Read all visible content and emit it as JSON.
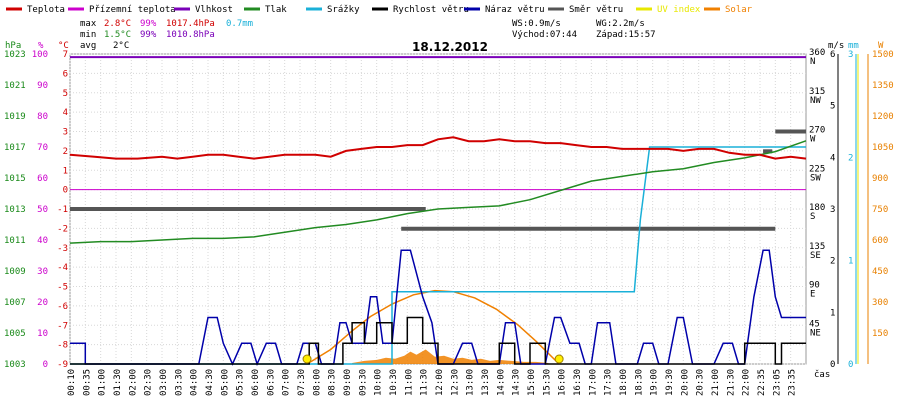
{
  "chart_data": {
    "type": "line",
    "title": "18.12.2012",
    "colors": {
      "temp": "#d00000",
      "feels": "#cc00cc",
      "humidity": "#7a00b8",
      "pressure": "#228b22",
      "rain": "#1ab0d8",
      "wind": "#000000",
      "gust": "#0000aa",
      "direction": "#555555",
      "uv": "#e8e800",
      "solar": "#f08000",
      "hpa_axis": "#1a8a1a",
      "pct_axis": "#cc00cc",
      "c_axis": "#d00000",
      "ms_axis": "#000000",
      "mm_axis": "#1ab0d8",
      "w_axis": "#e88000"
    },
    "legend": [
      {
        "key": "temp",
        "label": "Teplota"
      },
      {
        "key": "feels",
        "label": "Přízemní teplota"
      },
      {
        "key": "humidity",
        "label": "Vlhkost"
      },
      {
        "key": "pressure",
        "label": "Tlak"
      },
      {
        "key": "rain",
        "label": "Srážky"
      },
      {
        "key": "wind",
        "label": "Rychlost větru"
      },
      {
        "key": "gust",
        "label": "Náraz větru"
      },
      {
        "key": "direction",
        "label": "Směr větru"
      },
      {
        "key": "uv",
        "label": "UV index"
      },
      {
        "key": "solar",
        "label": "Solar"
      }
    ],
    "stats": {
      "max_label": "max",
      "max_temp": "2.8°C",
      "max_hum": "99%",
      "max_press": "1017.4hPa",
      "max_rain": "0.7mm",
      "min_label": "min",
      "min_temp": "1.5°C",
      "min_hum": "99%",
      "min_press": "1010.8hPa",
      "avg_label": "avg",
      "avg_temp": "2°C"
    },
    "wind_info": {
      "ws": "WS:0.9m/s",
      "wg": "WG:2.2m/s",
      "sunrise": "Východ:07:44",
      "sunset": "Západ:15:57"
    },
    "axis_titles": {
      "hpa": "hPa",
      "pct": "%",
      "c": "°C",
      "ms": "m/s",
      "mm": "mm",
      "w": "W",
      "time": "čas"
    },
    "x_ticks": [
      "00:10",
      "00:35",
      "01:00",
      "01:30",
      "02:00",
      "02:30",
      "03:00",
      "03:30",
      "04:00",
      "04:30",
      "05:00",
      "05:30",
      "06:00",
      "06:30",
      "07:00",
      "07:30",
      "08:00",
      "08:30",
      "09:00",
      "09:30",
      "10:00",
      "10:30",
      "11:00",
      "11:30",
      "12:00",
      "12:30",
      "13:00",
      "13:30",
      "14:00",
      "14:30",
      "15:00",
      "15:30",
      "16:00",
      "16:30",
      "17:00",
      "17:30",
      "18:00",
      "18:30",
      "19:00",
      "19:30",
      "20:00",
      "20:30",
      "21:00",
      "21:30",
      "22:00",
      "22:35",
      "23:05",
      "23:35"
    ],
    "axes": {
      "hpa": {
        "range": [
          1003,
          1023
        ],
        "ticks": [
          1003,
          1005,
          1007,
          1009,
          1011,
          1013,
          1015,
          1017,
          1019,
          1021,
          1023
        ]
      },
      "pct": {
        "range": [
          0,
          100
        ],
        "ticks": [
          0,
          10,
          20,
          30,
          40,
          50,
          60,
          70,
          80,
          90,
          100
        ]
      },
      "c": {
        "range": [
          -9,
          7
        ],
        "ticks": [
          -9,
          -8,
          -7,
          -6,
          -5,
          -4,
          -3,
          -2,
          -1,
          0,
          1,
          2,
          3,
          4,
          5,
          6,
          7
        ]
      },
      "dir": {
        "range": [
          0,
          360
        ],
        "ticks": [
          {
            "deg": 360,
            "v": "360",
            "c": "N"
          },
          {
            "deg": 315,
            "v": "315",
            "c": "NW"
          },
          {
            "deg": 270,
            "v": "270",
            "c": "W"
          },
          {
            "deg": 225,
            "v": "225",
            "c": "SW"
          },
          {
            "deg": 180,
            "v": "180",
            "c": "S"
          },
          {
            "deg": 135,
            "v": "135",
            "c": "SE"
          },
          {
            "deg": 90,
            "v": "90",
            "c": "E"
          },
          {
            "deg": 45,
            "v": "45",
            "c": "NE"
          }
        ]
      },
      "ms": {
        "range": [
          0,
          6
        ],
        "ticks": [
          0,
          1,
          2,
          3,
          4,
          5,
          6
        ]
      },
      "mm": {
        "range": [
          0,
          3
        ],
        "ticks": [
          0,
          1,
          2,
          3
        ]
      },
      "w": {
        "range": [
          0,
          1500
        ],
        "ticks": [
          150,
          300,
          450,
          600,
          750,
          900,
          1050,
          1200,
          1350,
          1500
        ]
      }
    },
    "x_range_hours": [
      0,
      24
    ],
    "series": {
      "temp": [
        [
          0,
          1.8
        ],
        [
          0.8,
          1.7
        ],
        [
          1.5,
          1.6
        ],
        [
          2.2,
          1.6
        ],
        [
          3,
          1.7
        ],
        [
          3.5,
          1.6
        ],
        [
          4,
          1.7
        ],
        [
          4.5,
          1.8
        ],
        [
          5,
          1.8
        ],
        [
          5.5,
          1.7
        ],
        [
          6,
          1.6
        ],
        [
          6.5,
          1.7
        ],
        [
          7,
          1.8
        ],
        [
          7.5,
          1.8
        ],
        [
          8,
          1.8
        ],
        [
          8.5,
          1.7
        ],
        [
          9,
          2.0
        ],
        [
          9.5,
          2.1
        ],
        [
          10,
          2.2
        ],
        [
          10.5,
          2.2
        ],
        [
          11,
          2.3
        ],
        [
          11.5,
          2.3
        ],
        [
          12,
          2.6
        ],
        [
          12.5,
          2.7
        ],
        [
          13,
          2.5
        ],
        [
          13.5,
          2.5
        ],
        [
          14,
          2.6
        ],
        [
          14.5,
          2.5
        ],
        [
          15,
          2.5
        ],
        [
          15.5,
          2.4
        ],
        [
          16,
          2.4
        ],
        [
          16.5,
          2.3
        ],
        [
          17,
          2.2
        ],
        [
          17.5,
          2.2
        ],
        [
          18,
          2.1
        ],
        [
          18.5,
          2.1
        ],
        [
          19,
          2.1
        ],
        [
          19.5,
          2.1
        ],
        [
          20,
          2.0
        ],
        [
          20.5,
          2.1
        ],
        [
          21,
          2.1
        ],
        [
          21.5,
          1.9
        ],
        [
          22,
          1.8
        ],
        [
          22.5,
          1.8
        ],
        [
          23,
          1.6
        ],
        [
          23.5,
          1.7
        ],
        [
          24,
          1.6
        ]
      ],
      "feels": [
        [
          0,
          0
        ],
        [
          24,
          0
        ]
      ],
      "humidity": [
        [
          0,
          99
        ],
        [
          24,
          99
        ]
      ],
      "pressure": [
        [
          0,
          1010.8
        ],
        [
          1,
          1010.9
        ],
        [
          2,
          1010.9
        ],
        [
          3,
          1011.0
        ],
        [
          4,
          1011.1
        ],
        [
          5,
          1011.1
        ],
        [
          6,
          1011.2
        ],
        [
          7,
          1011.5
        ],
        [
          8,
          1011.8
        ],
        [
          9,
          1012.0
        ],
        [
          10,
          1012.3
        ],
        [
          11,
          1012.7
        ],
        [
          12,
          1013.0
        ],
        [
          13,
          1013.1
        ],
        [
          14,
          1013.2
        ],
        [
          15,
          1013.6
        ],
        [
          16,
          1014.2
        ],
        [
          17,
          1014.8
        ],
        [
          18,
          1015.1
        ],
        [
          19,
          1015.4
        ],
        [
          20,
          1015.6
        ],
        [
          21,
          1016.0
        ],
        [
          22,
          1016.3
        ],
        [
          23,
          1016.7
        ],
        [
          24,
          1017.4
        ]
      ],
      "rain": [
        [
          0,
          0
        ],
        [
          10.5,
          0
        ],
        [
          10.5,
          0.7
        ],
        [
          18.4,
          0.7
        ],
        [
          18.6,
          1.4
        ],
        [
          18.9,
          2.1
        ],
        [
          24,
          2.1
        ]
      ],
      "wind": [
        [
          0,
          0
        ],
        [
          7.8,
          0
        ],
        [
          7.8,
          0.4
        ],
        [
          8.1,
          0.4
        ],
        [
          8.1,
          0
        ],
        [
          8.9,
          0
        ],
        [
          8.9,
          0.4
        ],
        [
          9.2,
          0.4
        ],
        [
          9.2,
          0.8
        ],
        [
          9.6,
          0.8
        ],
        [
          9.6,
          0.4
        ],
        [
          10.0,
          0.4
        ],
        [
          10.0,
          0.8
        ],
        [
          10.5,
          0.8
        ],
        [
          10.5,
          0.4
        ],
        [
          11.0,
          0.4
        ],
        [
          11.0,
          0.9
        ],
        [
          11.5,
          0.9
        ],
        [
          11.5,
          0.4
        ],
        [
          12.0,
          0.4
        ],
        [
          12.0,
          0
        ],
        [
          14.0,
          0
        ],
        [
          14.0,
          0.4
        ],
        [
          14.5,
          0.4
        ],
        [
          14.5,
          0
        ],
        [
          15.0,
          0
        ],
        [
          15.0,
          0.4
        ],
        [
          15.5,
          0.4
        ],
        [
          15.5,
          0
        ],
        [
          22.0,
          0
        ],
        [
          22.0,
          0.4
        ],
        [
          23.0,
          0.4
        ],
        [
          23.0,
          0
        ],
        [
          23.2,
          0
        ],
        [
          23.2,
          0.4
        ],
        [
          24,
          0.4
        ]
      ],
      "gust": [
        [
          0,
          0.4
        ],
        [
          0.5,
          0.4
        ],
        [
          0.5,
          0
        ],
        [
          4.2,
          0
        ],
        [
          4.5,
          0.9
        ],
        [
          4.8,
          0.9
        ],
        [
          5.0,
          0.4
        ],
        [
          5.3,
          0
        ],
        [
          5.6,
          0.4
        ],
        [
          5.9,
          0.4
        ],
        [
          6.1,
          0
        ],
        [
          6.4,
          0.4
        ],
        [
          6.7,
          0.4
        ],
        [
          6.9,
          0
        ],
        [
          7.4,
          0
        ],
        [
          7.6,
          0.4
        ],
        [
          8.0,
          0.4
        ],
        [
          8.2,
          0
        ],
        [
          8.6,
          0
        ],
        [
          8.8,
          0.8
        ],
        [
          9.0,
          0.8
        ],
        [
          9.2,
          0.4
        ],
        [
          9.6,
          0.4
        ],
        [
          9.8,
          1.3
        ],
        [
          10.0,
          1.3
        ],
        [
          10.2,
          0.4
        ],
        [
          10.5,
          0.4
        ],
        [
          10.8,
          2.2
        ],
        [
          11.1,
          2.2
        ],
        [
          11.5,
          1.3
        ],
        [
          11.8,
          0.8
        ],
        [
          12.0,
          0
        ],
        [
          12.5,
          0
        ],
        [
          12.8,
          0.4
        ],
        [
          13.1,
          0.4
        ],
        [
          13.3,
          0
        ],
        [
          14.0,
          0
        ],
        [
          14.2,
          0.8
        ],
        [
          14.5,
          0.8
        ],
        [
          14.7,
          0
        ],
        [
          15.5,
          0
        ],
        [
          15.8,
          0.9
        ],
        [
          16.0,
          0.9
        ],
        [
          16.3,
          0.4
        ],
        [
          16.6,
          0.4
        ],
        [
          16.8,
          0
        ],
        [
          17.0,
          0
        ],
        [
          17.2,
          0.8
        ],
        [
          17.6,
          0.8
        ],
        [
          17.8,
          0
        ],
        [
          18.5,
          0
        ],
        [
          18.7,
          0.4
        ],
        [
          19.0,
          0.4
        ],
        [
          19.2,
          0
        ],
        [
          19.5,
          0
        ],
        [
          19.8,
          0.9
        ],
        [
          20.0,
          0.9
        ],
        [
          20.3,
          0
        ],
        [
          21.0,
          0
        ],
        [
          21.3,
          0.4
        ],
        [
          21.6,
          0.4
        ],
        [
          21.8,
          0
        ],
        [
          22.0,
          0
        ],
        [
          22.3,
          1.3
        ],
        [
          22.6,
          2.2
        ],
        [
          22.8,
          2.2
        ],
        [
          23.0,
          1.3
        ],
        [
          23.2,
          0.9
        ],
        [
          23.6,
          0.9
        ],
        [
          24,
          0.9
        ]
      ],
      "direction": [
        [
          0,
          180,
          11.6
        ],
        [
          11.6,
          180,
          11.6
        ],
        [
          10.8,
          157,
          23.0
        ],
        [
          22.6,
          247,
          22.9
        ],
        [
          23.0,
          270,
          24
        ]
      ],
      "solar": [
        [
          7.73,
          0
        ],
        [
          8.5,
          70
        ],
        [
          9.2,
          160
        ],
        [
          9.8,
          230
        ],
        [
          10.5,
          290
        ],
        [
          11.2,
          335
        ],
        [
          11.9,
          355
        ],
        [
          12.5,
          350
        ],
        [
          13.2,
          320
        ],
        [
          13.9,
          265
        ],
        [
          14.6,
          190
        ],
        [
          15.2,
          110
        ],
        [
          15.95,
          0
        ]
      ],
      "solar_measured": [
        [
          9.2,
          5
        ],
        [
          9.6,
          15
        ],
        [
          10.0,
          20
        ],
        [
          10.3,
          30
        ],
        [
          10.6,
          25
        ],
        [
          10.9,
          40
        ],
        [
          11.1,
          60
        ],
        [
          11.3,
          45
        ],
        [
          11.6,
          70
        ],
        [
          11.9,
          35
        ],
        [
          12.2,
          40
        ],
        [
          12.5,
          25
        ],
        [
          12.8,
          30
        ],
        [
          13.1,
          20
        ],
        [
          13.4,
          25
        ],
        [
          13.7,
          15
        ],
        [
          14.0,
          20
        ],
        [
          14.4,
          15
        ],
        [
          14.8,
          10
        ],
        [
          15.2,
          10
        ],
        [
          15.6,
          5
        ]
      ],
      "sun_markers": [
        7.73,
        15.95
      ]
    }
  }
}
